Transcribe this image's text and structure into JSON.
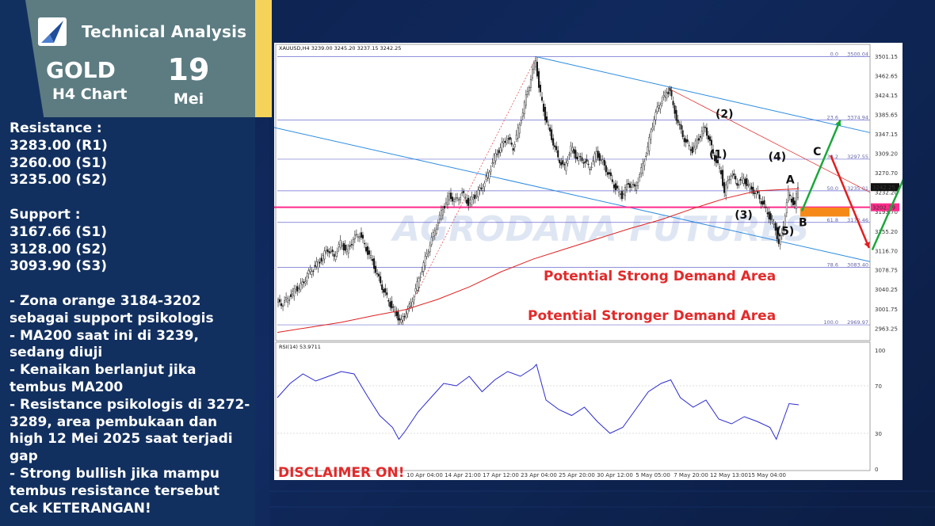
{
  "brand": "Technical Analysis",
  "instrument": "GOLD",
  "timeframe": "H4 Chart",
  "date": {
    "day": "19",
    "month": "Mei"
  },
  "notes": {
    "resistance_title": "Resistance :",
    "resistance": [
      "3283.00 (R1)",
      "3260.00 (S1)",
      "3235.00 (S2)"
    ],
    "support_title": "Support :",
    "support": [
      "3167.66 (S1)",
      "3128.00 (S2)",
      "3093.90 (S3)"
    ],
    "bullets": [
      "- Zona orange 3184-3202 sebagai support psikologis",
      "- MA200 saat ini di 3239, sedang diuji",
      "- Kenaikan berlanjut jika tembus MA200",
      "- Resistance psikologis di 3272-3289, area pembukaan dan high 12 Mei 2025 saat terjadi gap",
      "- Strong bullish jika mampu tembus resistance tersebut",
      "Cek KETERANGAN!"
    ]
  },
  "chart_header": "XAUUSD,H4  3239.00 3245.20 3237.15 3242.25",
  "rsi_header": "RSI(14) 53.9711",
  "watermark": "AGRODANA FUTURES",
  "disclaimer": "DISCLAIMER ON!",
  "zone_labels": [
    "Potential Strong Demand Area",
    "Potential Stronger Demand Area"
  ],
  "colors": {
    "candle": "#111111",
    "ma": "#e02020",
    "fib": "#6b6bd0",
    "channel": "#2b8be0",
    "pink_line": "#ff2a8a",
    "orange_zone": "#f58a1a",
    "green_arrow": "#1aa83a",
    "red_arrow": "#e02020",
    "zone_text": "#e22a2a"
  },
  "chart_data": {
    "type": "candlestick",
    "symbol": "XAUUSD",
    "timeframe": "H4",
    "ohlc": {
      "open": 3239.0,
      "high": 3245.2,
      "low": 3237.15,
      "close": 3242.25
    },
    "y_ticks": [
      "3501.15",
      "3462.65",
      "3424.15",
      "3385.65",
      "3347.15",
      "3309.20",
      "3270.70",
      "3232.20",
      "3193.70",
      "3155.20",
      "3116.70",
      "3078.75",
      "3040.25",
      "3001.75",
      "2963.25"
    ],
    "x_ticks": [
      "10 Apr 04:00",
      "14 Apr 21:00",
      "17 Apr 12:00",
      "23 Apr 04:00",
      "25 Apr 20:00",
      "30 Apr 12:00",
      "5 May 05:00",
      "7 May 20:00",
      "12 May 13:00",
      "15 May 04:00"
    ],
    "ylim": [
      2945,
      3512
    ],
    "price_tags": [
      {
        "value": 3242.25,
        "color": "#111111"
      },
      {
        "value": 3202.39,
        "color": "#ff2a8a"
      }
    ],
    "fibonacci": [
      {
        "level": "0.0",
        "price": 3500.04
      },
      {
        "level": "23.6",
        "price": 3374.94
      },
      {
        "level": "38.2",
        "price": 3297.55
      },
      {
        "level": "50.0",
        "price": 3235.01
      },
      {
        "level": "61.8",
        "price": 3172.46
      },
      {
        "level": "78.6",
        "price": 3083.4
      },
      {
        "level": "100.0",
        "price": 2969.97
      }
    ],
    "wave_labels": [
      "(1)",
      "(2)",
      "(3)",
      "(4)",
      "(5)",
      "A",
      "B",
      "C"
    ],
    "close_path": [
      [
        0,
        3015
      ],
      [
        4,
        3012
      ],
      [
        8,
        3025
      ],
      [
        12,
        3040
      ],
      [
        16,
        3050
      ],
      [
        20,
        3072
      ],
      [
        24,
        3085
      ],
      [
        28,
        3100
      ],
      [
        32,
        3120
      ],
      [
        36,
        3105
      ],
      [
        40,
        3132
      ],
      [
        44,
        3115
      ],
      [
        48,
        3140
      ],
      [
        52,
        3150
      ],
      [
        56,
        3120
      ],
      [
        60,
        3095
      ],
      [
        64,
        3060
      ],
      [
        68,
        3030
      ],
      [
        72,
        3005
      ],
      [
        76,
        2985
      ],
      [
        78,
        2975
      ],
      [
        80,
        2990
      ],
      [
        84,
        3010
      ],
      [
        88,
        3050
      ],
      [
        92,
        3090
      ],
      [
        96,
        3130
      ],
      [
        100,
        3165
      ],
      [
        104,
        3200
      ],
      [
        108,
        3225
      ],
      [
        112,
        3215
      ],
      [
        116,
        3230
      ],
      [
        120,
        3210
      ],
      [
        124,
        3225
      ],
      [
        128,
        3240
      ],
      [
        132,
        3265
      ],
      [
        136,
        3300
      ],
      [
        140,
        3320
      ],
      [
        144,
        3340
      ],
      [
        148,
        3320
      ],
      [
        152,
        3365
      ],
      [
        156,
        3420
      ],
      [
        160,
        3470
      ],
      [
        162,
        3495
      ],
      [
        164,
        3440
      ],
      [
        168,
        3380
      ],
      [
        172,
        3340
      ],
      [
        176,
        3300
      ],
      [
        180,
        3280
      ],
      [
        184,
        3320
      ],
      [
        188,
        3300
      ],
      [
        192,
        3295
      ],
      [
        196,
        3280
      ],
      [
        200,
        3310
      ],
      [
        204,
        3290
      ],
      [
        208,
        3265
      ],
      [
        212,
        3240
      ],
      [
        216,
        3225
      ],
      [
        220,
        3250
      ],
      [
        224,
        3240
      ],
      [
        228,
        3275
      ],
      [
        232,
        3320
      ],
      [
        236,
        3380
      ],
      [
        240,
        3410
      ],
      [
        244,
        3430
      ],
      [
        246,
        3435
      ],
      [
        248,
        3400
      ],
      [
        252,
        3360
      ],
      [
        256,
        3330
      ],
      [
        260,
        3315
      ],
      [
        264,
        3340
      ],
      [
        268,
        3360
      ],
      [
        270,
        3340
      ],
      [
        274,
        3300
      ],
      [
        278,
        3270
      ],
      [
        280,
        3232
      ],
      [
        284,
        3270
      ],
      [
        288,
        3250
      ],
      [
        292,
        3258
      ],
      [
        296,
        3240
      ],
      [
        300,
        3230
      ],
      [
        304,
        3210
      ],
      [
        308,
        3185
      ],
      [
        312,
        3160
      ],
      [
        314,
        3130
      ],
      [
        316,
        3150
      ],
      [
        320,
        3230
      ],
      [
        324,
        3205
      ],
      [
        326,
        3242
      ]
    ],
    "ma200_path": [
      [
        0,
        2955
      ],
      [
        20,
        2965
      ],
      [
        40,
        2975
      ],
      [
        60,
        2988
      ],
      [
        80,
        3000
      ],
      [
        100,
        3020
      ],
      [
        120,
        3045
      ],
      [
        140,
        3075
      ],
      [
        160,
        3100
      ],
      [
        180,
        3120
      ],
      [
        200,
        3140
      ],
      [
        220,
        3160
      ],
      [
        240,
        3178
      ],
      [
        260,
        3200
      ],
      [
        280,
        3220
      ],
      [
        300,
        3235
      ],
      [
        326,
        3239
      ]
    ],
    "rsi": {
      "period": 14,
      "value": 53.9711,
      "ylim": [
        0,
        100
      ],
      "y_ticks": [
        0,
        30,
        70,
        100
      ],
      "path": [
        [
          0,
          60
        ],
        [
          8,
          72
        ],
        [
          16,
          80
        ],
        [
          24,
          74
        ],
        [
          32,
          78
        ],
        [
          40,
          82
        ],
        [
          48,
          80
        ],
        [
          56,
          62
        ],
        [
          64,
          45
        ],
        [
          72,
          35
        ],
        [
          76,
          25
        ],
        [
          80,
          32
        ],
        [
          88,
          48
        ],
        [
          96,
          60
        ],
        [
          104,
          72
        ],
        [
          112,
          70
        ],
        [
          120,
          78
        ],
        [
          128,
          65
        ],
        [
          136,
          75
        ],
        [
          144,
          82
        ],
        [
          152,
          78
        ],
        [
          160,
          85
        ],
        [
          162,
          88
        ],
        [
          168,
          58
        ],
        [
          176,
          50
        ],
        [
          184,
          45
        ],
        [
          192,
          52
        ],
        [
          200,
          40
        ],
        [
          208,
          30
        ],
        [
          216,
          35
        ],
        [
          224,
          50
        ],
        [
          232,
          65
        ],
        [
          240,
          72
        ],
        [
          246,
          75
        ],
        [
          252,
          60
        ],
        [
          260,
          52
        ],
        [
          268,
          58
        ],
        [
          276,
          42
        ],
        [
          284,
          38
        ],
        [
          292,
          44
        ],
        [
          300,
          40
        ],
        [
          308,
          35
        ],
        [
          312,
          25
        ],
        [
          316,
          40
        ],
        [
          320,
          55
        ],
        [
          326,
          54
        ]
      ]
    }
  }
}
